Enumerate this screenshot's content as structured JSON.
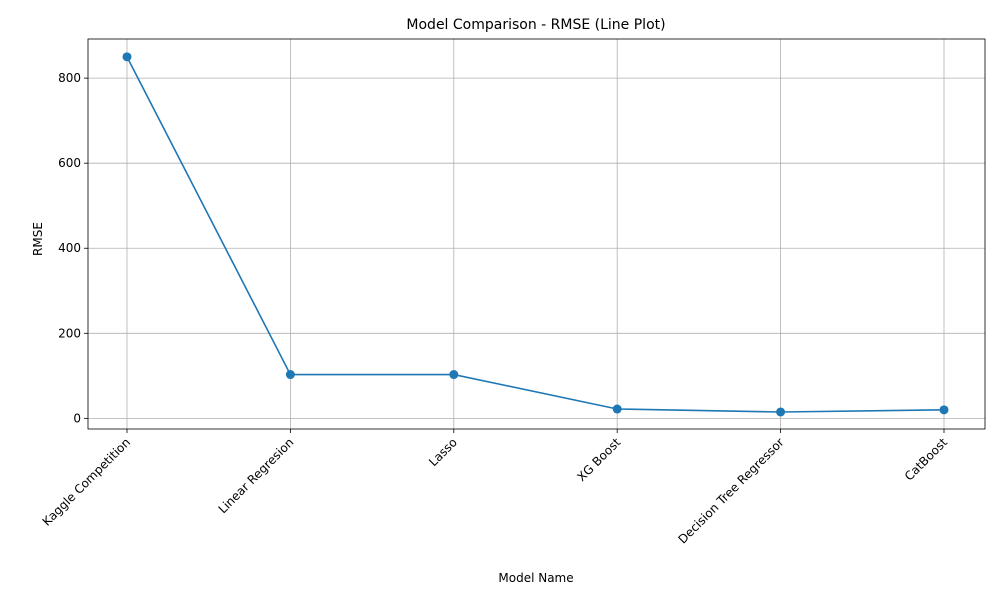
{
  "chart_data": {
    "type": "line",
    "title": "Model Comparison - RMSE (Line Plot)",
    "xlabel": "Model Name",
    "ylabel": "RMSE",
    "categories": [
      "Kaggle Competition",
      "Linear Regresion",
      "Lasso",
      "XG Boost",
      "Decision Tree Regressor",
      "CatBoost"
    ],
    "values": [
      850,
      103,
      103,
      22,
      15,
      20
    ],
    "ylim": [
      -25,
      892
    ],
    "yticks": [
      0,
      200,
      400,
      600,
      800
    ],
    "grid": true,
    "line_color": "#1f77b4",
    "marker": "circle"
  }
}
